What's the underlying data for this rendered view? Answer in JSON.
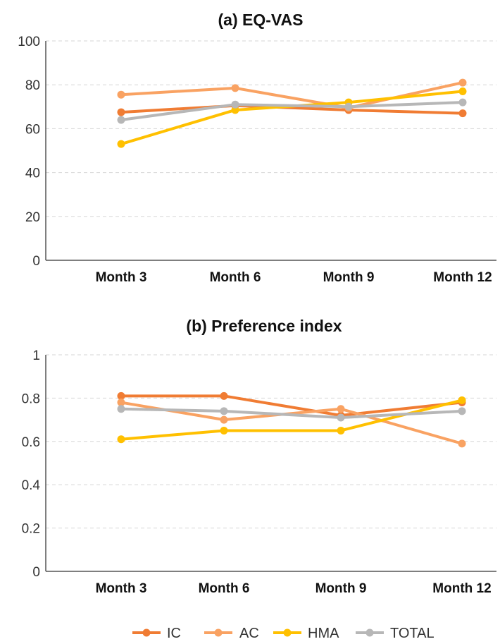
{
  "chart_data": [
    {
      "type": "line",
      "title": "(a) EQ-VAS",
      "categories": [
        "Month 3",
        "Month 6",
        "Month 9",
        "Month 12"
      ],
      "ylim": [
        0,
        100
      ],
      "yticks": [
        "0",
        "20",
        "40",
        "60",
        "80",
        "100"
      ],
      "grid": true,
      "series": [
        {
          "name": "IC",
          "color": "#F07C33",
          "values": [
            67.5,
            70.5,
            68.5,
            67
          ]
        },
        {
          "name": "AC",
          "color": "#F9A262",
          "values": [
            75.5,
            78.5,
            69.5,
            81
          ]
        },
        {
          "name": "HMA",
          "color": "#FFC000",
          "values": [
            53,
            68.5,
            72,
            77
          ]
        },
        {
          "name": "TOTAL",
          "color": "#B7B7B7",
          "values": [
            64,
            71,
            70,
            72
          ]
        }
      ]
    },
    {
      "type": "line",
      "title": "(b) Preference index",
      "categories": [
        "Month 3",
        "Month 6",
        "Month 9",
        "Month 12"
      ],
      "ylim": [
        0,
        1
      ],
      "yticks": [
        "0",
        "0.2",
        "0.4",
        "0.6",
        "0.8",
        "1"
      ],
      "grid": true,
      "series": [
        {
          "name": "IC",
          "color": "#F07C33",
          "values": [
            0.81,
            0.81,
            0.72,
            0.78
          ]
        },
        {
          "name": "AC",
          "color": "#F9A262",
          "values": [
            0.78,
            0.7,
            0.75,
            0.59
          ]
        },
        {
          "name": "HMA",
          "color": "#FFC000",
          "values": [
            0.61,
            0.65,
            0.65,
            0.79
          ]
        },
        {
          "name": "TOTAL",
          "color": "#B7B7B7",
          "values": [
            0.75,
            0.74,
            0.71,
            0.74
          ]
        }
      ]
    }
  ],
  "legend": {
    "placement": "bottom",
    "items": [
      {
        "label": "IC",
        "color": "#F07C33"
      },
      {
        "label": "AC",
        "color": "#F9A262"
      },
      {
        "label": "HMA",
        "color": "#FFC000"
      },
      {
        "label": "TOTAL",
        "color": "#B7B7B7"
      }
    ]
  }
}
